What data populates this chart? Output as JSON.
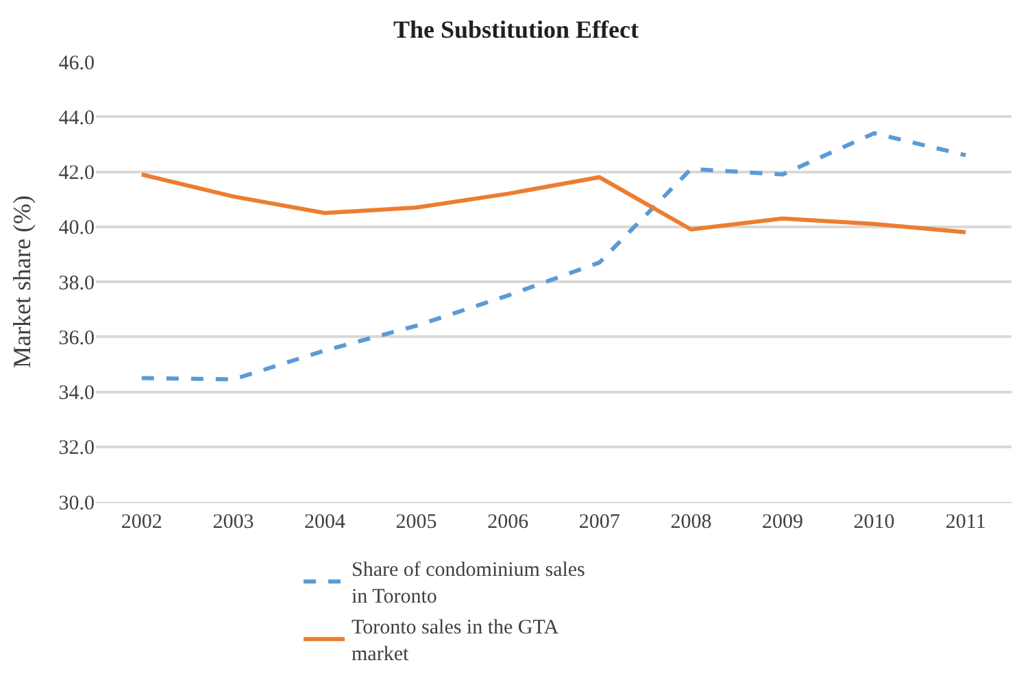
{
  "chart_data": {
    "type": "line",
    "title": "The Substitution Effect",
    "ylabel": "Market share (%)",
    "categories": [
      "2002",
      "2003",
      "2004",
      "2005",
      "2006",
      "2007",
      "2008",
      "2009",
      "2010",
      "2011"
    ],
    "series": [
      {
        "name": "Share of condominium sales in Toronto",
        "color": "#5b9bd5",
        "line_style": "dashed",
        "values": [
          34.5,
          34.45,
          35.5,
          36.4,
          37.5,
          38.7,
          42.1,
          41.9,
          43.4,
          42.6
        ]
      },
      {
        "name": "Toronto sales in the GTA market",
        "color": "#ed7d31",
        "line_style": "solid",
        "values": [
          41.9,
          41.1,
          40.5,
          40.7,
          41.2,
          41.8,
          39.9,
          40.3,
          40.1,
          39.8
        ]
      }
    ],
    "ylim": [
      30,
      46
    ],
    "yticks": [
      {
        "value": 30,
        "label": "30.0"
      },
      {
        "value": 32,
        "label": "32.0"
      },
      {
        "value": 34,
        "label": "34.0"
      },
      {
        "value": 36,
        "label": "36.0"
      },
      {
        "value": 38,
        "label": "38.0"
      },
      {
        "value": 40,
        "label": "40.0"
      },
      {
        "value": 42,
        "label": "42.0"
      },
      {
        "value": 44,
        "label": "44.0"
      },
      {
        "value": 46,
        "label": "46.0"
      }
    ],
    "grid": "y",
    "legend": "bottom",
    "marker": "none"
  }
}
